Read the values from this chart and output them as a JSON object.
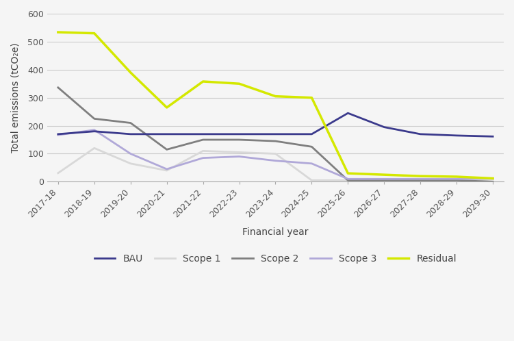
{
  "years": [
    "2017-18",
    "2018-19",
    "2019-20",
    "2020-21",
    "2021-22",
    "2022-23",
    "2023-24",
    "2024-25",
    "2025-26",
    "2026-27",
    "2027-28",
    "2028-29",
    "2029-30"
  ],
  "BAU": [
    170,
    180,
    170,
    170,
    170,
    170,
    170,
    170,
    245,
    195,
    170,
    165,
    161.55
  ],
  "Scope1": [
    30.85,
    120,
    65,
    40,
    110,
    105,
    100,
    5,
    5,
    5,
    5,
    5,
    1.34
  ],
  "Scope2": [
    336.37,
    225,
    210,
    115,
    150,
    150,
    145,
    125,
    5,
    5,
    5,
    5,
    0.0
  ],
  "Scope3": [
    166.73,
    185,
    100,
    45,
    85,
    90,
    75,
    65,
    10,
    10,
    10,
    10,
    10.52
  ],
  "Residual": [
    533.96,
    530,
    390,
    265,
    358,
    350,
    305,
    300,
    30,
    25,
    20,
    18,
    11.86
  ],
  "BAU_color": "#3b3a8c",
  "Scope1_color": "#d8d8d8",
  "Scope2_color": "#7f7f7f",
  "Scope3_color": "#b0a8d8",
  "Residual_color": "#d4e800",
  "xlabel": "Financial year",
  "ylabel": "Total emissions (tCO₂e)",
  "ylim": [
    0,
    600
  ],
  "yticks": [
    0,
    100,
    200,
    300,
    400,
    500,
    600
  ],
  "background_color": "#f5f5f5",
  "grid_color": "#cccccc",
  "legend_labels": [
    "BAU",
    "Scope 1",
    "Scope 2",
    "Scope 3",
    "Residual"
  ],
  "line_width": 2.0
}
